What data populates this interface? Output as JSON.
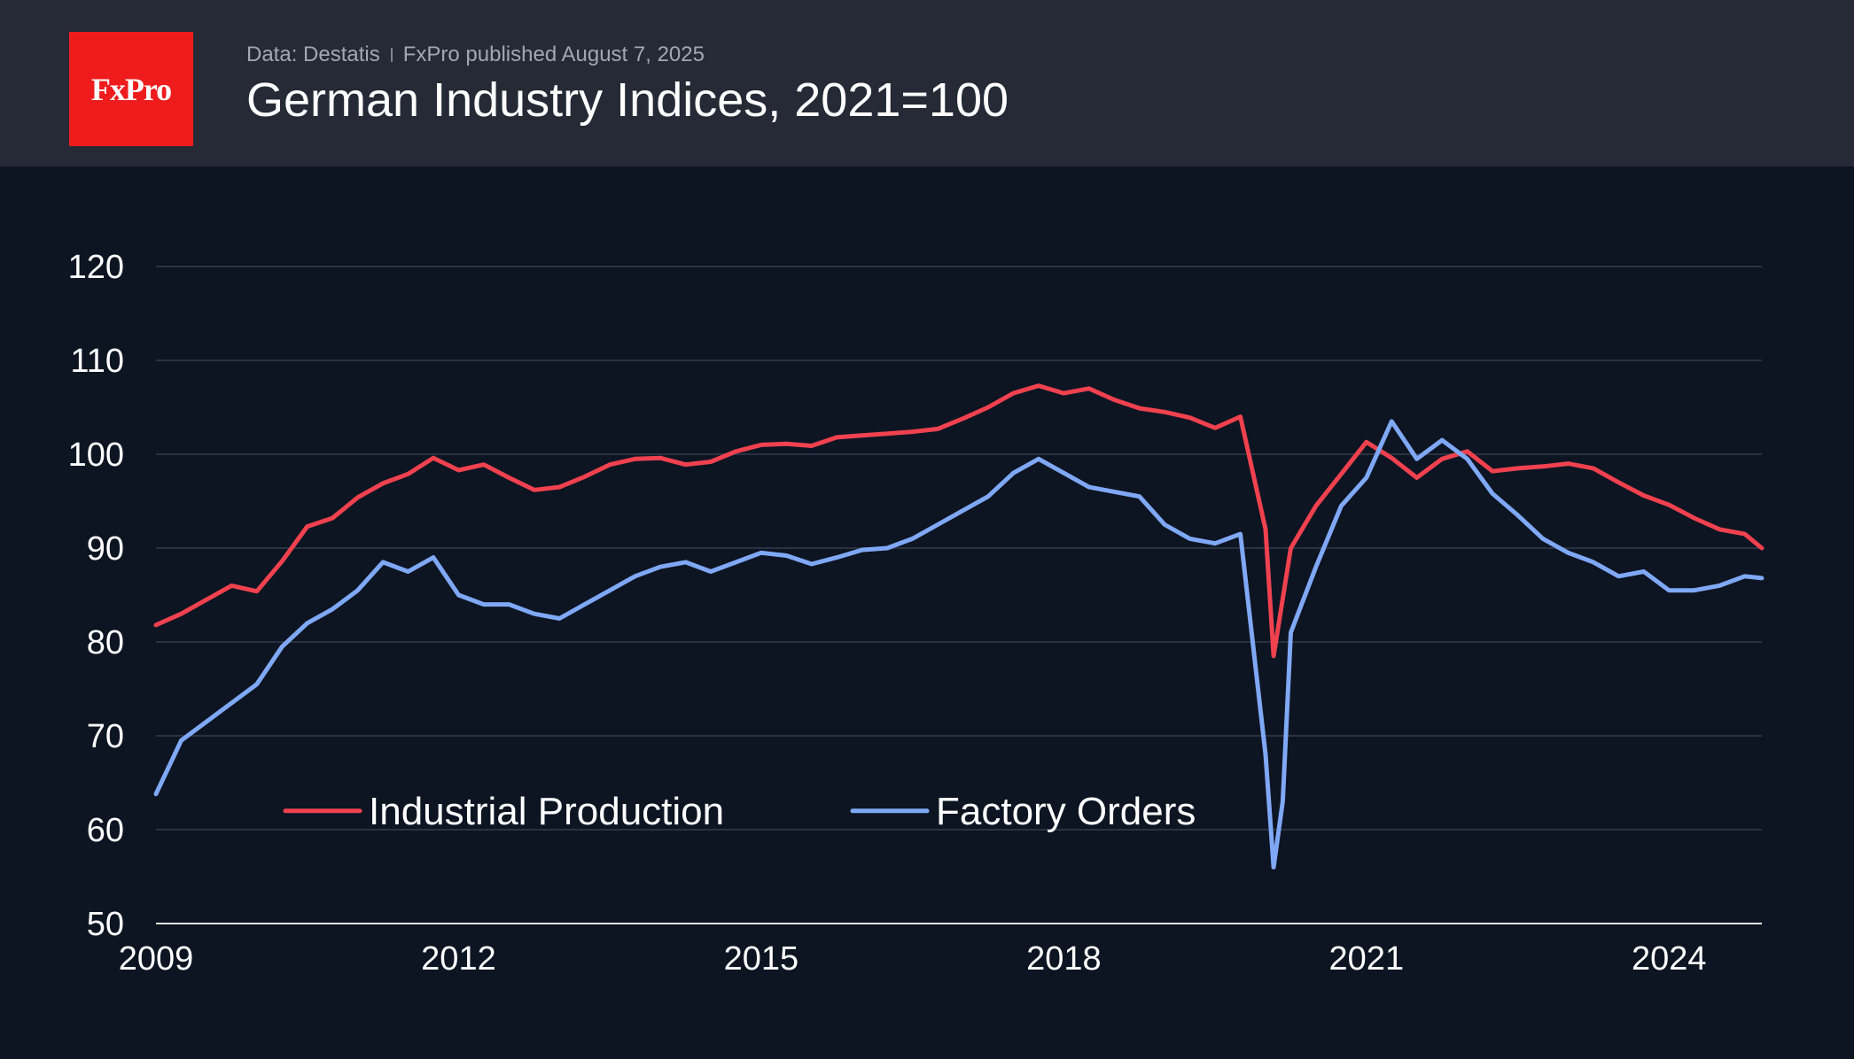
{
  "header": {
    "logo": "FxPro",
    "source": "Data: Destatis",
    "published": "FxPro published August 7, 2025"
  },
  "colors": {
    "industrial_production": "#f0414f",
    "factory_orders": "#7fa8f5",
    "background": "#0d1422",
    "header": "#262a36"
  },
  "chart_data": {
    "type": "line",
    "title": "German Industry Indices, 2021=100",
    "xlabel": "",
    "ylabel": "",
    "xlim": [
      2009.0,
      2024.92
    ],
    "ylim": [
      50,
      120
    ],
    "x_ticks": [
      2009,
      2012,
      2015,
      2018,
      2021,
      2024
    ],
    "y_ticks": [
      50,
      60,
      70,
      80,
      90,
      100,
      110,
      120
    ],
    "grid": true,
    "legend_position": "bottom-left",
    "series": [
      {
        "name": "Industrial Production",
        "color": "#f0414f",
        "points": [
          [
            2009.0,
            81.8
          ],
          [
            2009.25,
            83.0
          ],
          [
            2009.5,
            84.5
          ],
          [
            2009.75,
            86.0
          ],
          [
            2010.0,
            85.4
          ],
          [
            2010.25,
            88.6
          ],
          [
            2010.5,
            92.3
          ],
          [
            2010.75,
            93.2
          ],
          [
            2011.0,
            95.4
          ],
          [
            2011.25,
            96.9
          ],
          [
            2011.5,
            97.9
          ],
          [
            2011.75,
            99.6
          ],
          [
            2012.0,
            98.3
          ],
          [
            2012.25,
            98.9
          ],
          [
            2012.5,
            97.5
          ],
          [
            2012.75,
            96.2
          ],
          [
            2013.0,
            96.5
          ],
          [
            2013.25,
            97.6
          ],
          [
            2013.5,
            98.9
          ],
          [
            2013.75,
            99.5
          ],
          [
            2014.0,
            99.6
          ],
          [
            2014.25,
            98.9
          ],
          [
            2014.5,
            99.2
          ],
          [
            2014.75,
            100.3
          ],
          [
            2015.0,
            101.0
          ],
          [
            2015.25,
            101.1
          ],
          [
            2015.5,
            100.9
          ],
          [
            2015.75,
            101.8
          ],
          [
            2016.0,
            102.0
          ],
          [
            2016.25,
            102.2
          ],
          [
            2016.5,
            102.4
          ],
          [
            2016.75,
            102.7
          ],
          [
            2017.0,
            103.8
          ],
          [
            2017.25,
            105.0
          ],
          [
            2017.5,
            106.5
          ],
          [
            2017.75,
            107.3
          ],
          [
            2018.0,
            106.5
          ],
          [
            2018.25,
            107.0
          ],
          [
            2018.5,
            105.8
          ],
          [
            2018.75,
            104.9
          ],
          [
            2019.0,
            104.5
          ],
          [
            2019.25,
            103.9
          ],
          [
            2019.5,
            102.8
          ],
          [
            2019.75,
            104.0
          ],
          [
            2020.0,
            92.0
          ],
          [
            2020.08,
            78.5
          ],
          [
            2020.25,
            90.0
          ],
          [
            2020.5,
            94.5
          ],
          [
            2020.75,
            97.9
          ],
          [
            2021.0,
            101.3
          ],
          [
            2021.25,
            99.6
          ],
          [
            2021.5,
            97.5
          ],
          [
            2021.75,
            99.5
          ],
          [
            2022.0,
            100.3
          ],
          [
            2022.25,
            98.2
          ],
          [
            2022.5,
            98.5
          ],
          [
            2022.75,
            98.7
          ],
          [
            2023.0,
            99.0
          ],
          [
            2023.25,
            98.5
          ],
          [
            2023.5,
            97.0
          ],
          [
            2023.75,
            95.6
          ],
          [
            2024.0,
            94.6
          ],
          [
            2024.25,
            93.2
          ],
          [
            2024.5,
            92.0
          ],
          [
            2024.75,
            91.5
          ],
          [
            2024.92,
            90.0
          ]
        ]
      },
      {
        "name": "Factory Orders",
        "color": "#7fa8f5",
        "points": [
          [
            2009.0,
            63.8
          ],
          [
            2009.25,
            69.5
          ],
          [
            2009.5,
            71.5
          ],
          [
            2009.75,
            73.5
          ],
          [
            2010.0,
            75.5
          ],
          [
            2010.25,
            79.5
          ],
          [
            2010.5,
            82.0
          ],
          [
            2010.75,
            83.5
          ],
          [
            2011.0,
            85.5
          ],
          [
            2011.25,
            88.5
          ],
          [
            2011.5,
            87.5
          ],
          [
            2011.75,
            89.0
          ],
          [
            2012.0,
            85.0
          ],
          [
            2012.25,
            84.0
          ],
          [
            2012.5,
            84.0
          ],
          [
            2012.75,
            83.0
          ],
          [
            2013.0,
            82.5
          ],
          [
            2013.25,
            84.0
          ],
          [
            2013.5,
            85.5
          ],
          [
            2013.75,
            87.0
          ],
          [
            2014.0,
            88.0
          ],
          [
            2014.25,
            88.5
          ],
          [
            2014.5,
            87.5
          ],
          [
            2014.75,
            88.5
          ],
          [
            2015.0,
            89.5
          ],
          [
            2015.25,
            89.2
          ],
          [
            2015.5,
            88.3
          ],
          [
            2015.75,
            89.0
          ],
          [
            2016.0,
            89.8
          ],
          [
            2016.25,
            90.0
          ],
          [
            2016.5,
            91.0
          ],
          [
            2016.75,
            92.5
          ],
          [
            2017.0,
            94.0
          ],
          [
            2017.25,
            95.5
          ],
          [
            2017.5,
            98.0
          ],
          [
            2017.75,
            99.5
          ],
          [
            2018.0,
            98.0
          ],
          [
            2018.25,
            96.5
          ],
          [
            2018.5,
            96.0
          ],
          [
            2018.75,
            95.5
          ],
          [
            2019.0,
            92.5
          ],
          [
            2019.25,
            91.0
          ],
          [
            2019.5,
            90.5
          ],
          [
            2019.75,
            91.5
          ],
          [
            2020.0,
            68.0
          ],
          [
            2020.08,
            56.0
          ],
          [
            2020.17,
            63.0
          ],
          [
            2020.25,
            81.0
          ],
          [
            2020.5,
            88.0
          ],
          [
            2020.75,
            94.5
          ],
          [
            2021.0,
            97.5
          ],
          [
            2021.25,
            103.5
          ],
          [
            2021.5,
            99.5
          ],
          [
            2021.75,
            101.5
          ],
          [
            2022.0,
            99.5
          ],
          [
            2022.25,
            95.8
          ],
          [
            2022.5,
            93.5
          ],
          [
            2022.75,
            91.0
          ],
          [
            2023.0,
            89.5
          ],
          [
            2023.25,
            88.5
          ],
          [
            2023.5,
            87.0
          ],
          [
            2023.75,
            87.5
          ],
          [
            2024.0,
            85.5
          ],
          [
            2024.25,
            85.5
          ],
          [
            2024.5,
            86.0
          ],
          [
            2024.75,
            87.0
          ],
          [
            2024.92,
            86.8
          ]
        ]
      }
    ]
  }
}
